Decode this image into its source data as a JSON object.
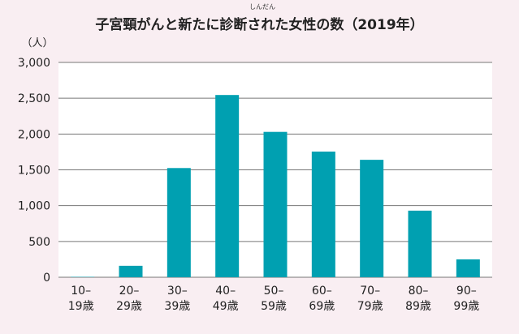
{
  "title": "子宮頸がんと新たに診断された女性の数（2019年）",
  "title_ruby": "しんだん",
  "colors": {
    "bar": "#00a0b1",
    "background": "#f9eef2",
    "plot_bg": "#ffffff",
    "grid": "#777777"
  },
  "chart_data": {
    "type": "bar",
    "title": "子宮頸がんと新たに診断された女性の数（2019年）",
    "ylabel": "（人）",
    "xlabel": "",
    "ylim": [
      0,
      3000
    ],
    "yticks": [
      0,
      500,
      1000,
      1500,
      2000,
      2500,
      3000
    ],
    "ytick_labels": [
      "0",
      "500",
      "1,000",
      "1,500",
      "2,000",
      "2,500",
      "3,000"
    ],
    "categories": [
      [
        "10–",
        "19歳"
      ],
      [
        "20–",
        "29歳"
      ],
      [
        "30–",
        "39歳"
      ],
      [
        "40–",
        "49歳"
      ],
      [
        "50–",
        "59歳"
      ],
      [
        "60–",
        "69歳"
      ],
      [
        "70–",
        "79歳"
      ],
      [
        "80–",
        "89歳"
      ],
      [
        "90–",
        "99歳"
      ]
    ],
    "values": [
      5,
      160,
      1525,
      2545,
      2030,
      1755,
      1640,
      930,
      250
    ],
    "grid": true
  }
}
